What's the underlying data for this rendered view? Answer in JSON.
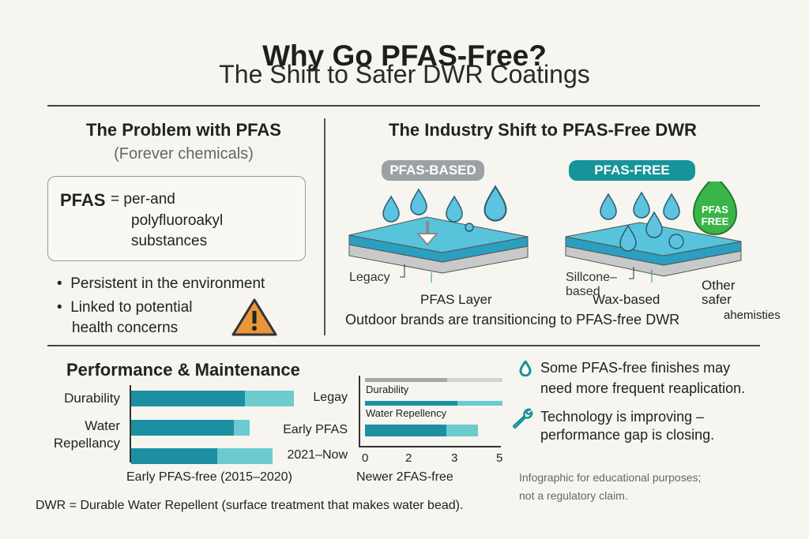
{
  "header": {
    "title": "Why Go PFAS-Free?",
    "subtitle": "The Shift to Safer DWR Coatings"
  },
  "problem": {
    "heading": "The Problem with PFAS",
    "subheading": "(Forever chemicals)",
    "definition": {
      "term": "PFAS",
      "eq": "= per-and",
      "line2": "polyfluoroakyl",
      "line3": "substances"
    },
    "bullets": [
      "Persistent in the environment",
      "Linked to potential",
      "health concerns"
    ],
    "icon": "warning-triangle-icon"
  },
  "shift": {
    "heading": "The Industry Shift to PFAS-Free DWR",
    "based_label": "PFAS-BASED",
    "free_label": "PFAS-FREE",
    "badge": [
      "PFAS",
      "FREE"
    ],
    "based_callouts": {
      "legacy": "Legacy",
      "layer": "PFAS Layer"
    },
    "free_callouts": {
      "silicone1": "Sillcone–",
      "silicone2": "based",
      "wax": "Wax-based",
      "other1": "Other",
      "other2": "safer",
      "other3": "ahemisties"
    },
    "caption": "Outdoor brands are transitioncing to PFAS-free DWR",
    "colors": {
      "based_pill": "#9ba1a4",
      "free_pill": "#17939a",
      "badge": "#3bb54a",
      "slab": "#4fbfd8",
      "slab_dark": "#2a9fc0",
      "drop": "#5cc3e0"
    }
  },
  "performance": {
    "heading": "Performance & Maintenance",
    "left_chart": {
      "labels": [
        "Durability",
        "Water",
        "Repellancy"
      ],
      "bars": [
        {
          "dark": 0.7,
          "light": 1.0
        },
        {
          "dark": 0.63,
          "light": 0.73
        },
        {
          "dark": 0.53,
          "light": 0.87
        }
      ],
      "caption": "Early PFAS-free (2015–2020)"
    },
    "mid_chart": {
      "row_labels": [
        "Legay",
        "Early PFAS",
        "2021–Now"
      ],
      "inner_labels": [
        "Durability",
        "Water Repellency"
      ],
      "bars": [
        {
          "dark": 0.6,
          "light": 1.0,
          "color": "gray"
        },
        {
          "dark": 0.67,
          "light": 1.0,
          "color": "teal"
        },
        {
          "dark": 0.59,
          "light": 0.82,
          "color": "teal"
        }
      ],
      "ticks": [
        "0",
        "2",
        "3",
        "5"
      ],
      "caption": "Newer 2FAS-free"
    },
    "colors": {
      "dark": "#1c90a2",
      "light": "#6ccbcf",
      "gray_dark": "#a7a7a7",
      "gray_light": "#d3d3d3"
    }
  },
  "notes": {
    "note1": [
      "Some PFAS-free finishes may",
      "need more frequent reaplication."
    ],
    "note2": [
      "Technology is improving –",
      "performance gap is closing."
    ],
    "disclaimer": [
      "Infographic for educational purposes;",
      "not a regulatory claim."
    ]
  },
  "footnote": "DWR = Durable Water Repellent (surface treatment that makes water bead)."
}
